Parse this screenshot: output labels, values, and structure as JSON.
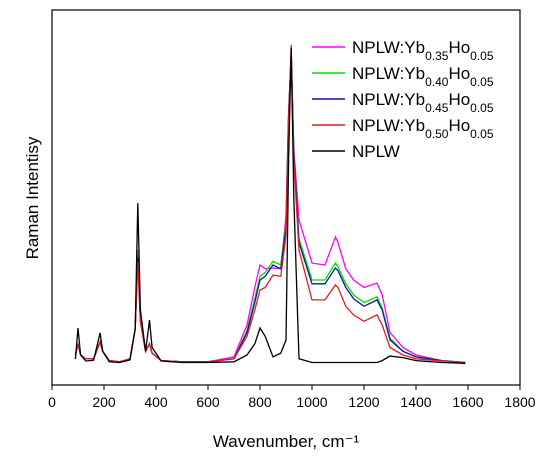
{
  "chart_data": {
    "type": "line",
    "xlabel": "Wavenumber, cm⁻¹",
    "ylabel": "Raman Intentisy",
    "x": [
      90,
      100,
      110,
      130,
      160,
      185,
      195,
      220,
      260,
      300,
      320,
      330,
      340,
      360,
      375,
      385,
      420,
      500,
      600,
      700,
      750,
      780,
      800,
      820,
      850,
      880,
      900,
      910,
      920,
      930,
      950,
      1000,
      1050,
      1090,
      1100,
      1130,
      1160,
      1200,
      1250,
      1270,
      1300,
      1350,
      1400,
      1500,
      1590
    ],
    "series": [
      {
        "name": "NPLW:Yb0.35Ho0.05",
        "color": "#ff00ff",
        "values": [
          8,
          11,
          8,
          7,
          7,
          11.5,
          9,
          6.5,
          6.2,
          7,
          15,
          33,
          17,
          9,
          11,
          8.5,
          6.5,
          6.2,
          6.2,
          7.5,
          16,
          26,
          32,
          31,
          31.2,
          31,
          45,
          73,
          88,
          63,
          44,
          32.5,
          32,
          39.5,
          38,
          31,
          28,
          26,
          27.2,
          24,
          14,
          10,
          8,
          6.5,
          6
        ]
      },
      {
        "name": "NPLW:Yb0.40Ho0.05",
        "color": "#00e000",
        "values": [
          8,
          11,
          8,
          7,
          7,
          11.5,
          9,
          6.5,
          6.2,
          7,
          15,
          36,
          17,
          9,
          11,
          8.5,
          6.5,
          6.2,
          6.2,
          7,
          14.5,
          23,
          29,
          30,
          33,
          32,
          43,
          72,
          88,
          62,
          39,
          28,
          28,
          32.5,
          31.5,
          27,
          24,
          22,
          23.5,
          20.5,
          12.5,
          9,
          7.5,
          6.5,
          6
        ]
      },
      {
        "name": "NPLW:Yb0.45Ho0.05",
        "color": "#1414a0",
        "values": [
          8,
          11,
          8,
          7,
          7,
          11.5,
          9,
          6.5,
          6.2,
          7,
          15,
          34,
          17,
          9,
          11,
          8.5,
          6.5,
          6.2,
          6.2,
          7,
          14,
          22,
          28,
          29,
          32,
          31,
          42,
          72,
          88,
          62,
          38,
          27,
          27,
          31.2,
          30.5,
          26,
          23,
          21,
          22.7,
          20,
          12,
          9,
          7.5,
          6.5,
          6
        ]
      },
      {
        "name": "NPLW:Yb0.50Ho0.05",
        "color": "#e01e1e",
        "values": [
          8,
          11,
          8,
          7,
          7,
          11.5,
          9,
          6.5,
          6.2,
          7,
          15,
          32.8,
          17,
          9,
          11,
          8.5,
          6.5,
          6.2,
          6.2,
          7,
          13,
          20,
          25.3,
          26,
          29.3,
          29,
          40,
          70,
          90.7,
          60,
          36,
          22.7,
          22.7,
          26.7,
          26,
          21,
          18.7,
          17,
          18.7,
          16,
          10,
          8,
          7,
          6.4,
          6
        ]
      },
      {
        "name": "NPLW",
        "color": "#000000",
        "values": [
          6.9,
          15.2,
          8,
          6.4,
          6.6,
          13.9,
          9,
          6.2,
          6,
          6.7,
          15,
          48.5,
          20,
          9,
          17.3,
          10,
          6.4,
          6,
          6,
          6.2,
          8,
          11,
          15.2,
          13,
          7.5,
          8.5,
          12,
          60,
          89.9,
          50,
          7,
          6,
          6,
          6,
          6,
          6,
          6,
          6,
          6,
          6.5,
          7.7,
          7.3,
          6.5,
          6,
          5.8
        ]
      }
    ],
    "xlim": [
      0,
      1800
    ],
    "xticks": [
      0,
      200,
      400,
      600,
      800,
      1000,
      1200,
      1400,
      1600,
      1800
    ],
    "ylim": [
      0,
      100
    ],
    "legend": "upper right"
  }
}
